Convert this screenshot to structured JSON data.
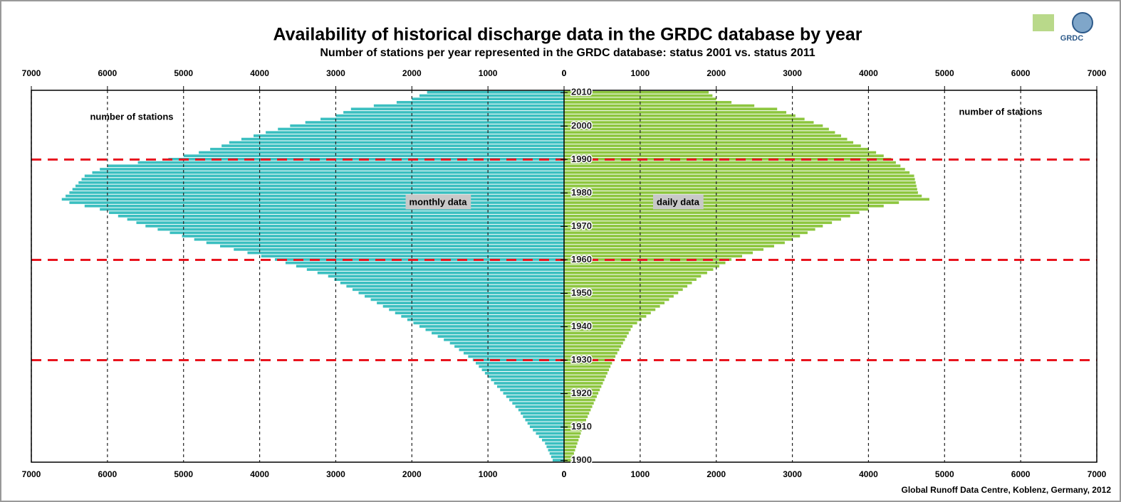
{
  "chart_data": {
    "type": "butterfly",
    "title": "Availability of historical discharge data in the GRDC database by year",
    "subtitle": "Number of stations per year represented in the GRDC database: status 2001 vs. status 2011",
    "annotations": [
      "number of stations",
      "number of stations"
    ],
    "footer": "Global Runoff Data Centre, Koblenz, Germany, 2012",
    "logo": "GRDC",
    "x": [
      1900,
      1901,
      1902,
      1903,
      1904,
      1905,
      1906,
      1907,
      1908,
      1909,
      1910,
      1911,
      1912,
      1913,
      1914,
      1915,
      1916,
      1917,
      1918,
      1919,
      1920,
      1921,
      1922,
      1923,
      1924,
      1925,
      1926,
      1927,
      1928,
      1929,
      1930,
      1931,
      1932,
      1933,
      1934,
      1935,
      1936,
      1937,
      1938,
      1939,
      1940,
      1941,
      1942,
      1943,
      1944,
      1945,
      1946,
      1947,
      1948,
      1949,
      1950,
      1951,
      1952,
      1953,
      1954,
      1955,
      1956,
      1957,
      1958,
      1959,
      1960,
      1961,
      1962,
      1963,
      1964,
      1965,
      1966,
      1967,
      1968,
      1969,
      1970,
      1971,
      1972,
      1973,
      1974,
      1975,
      1976,
      1977,
      1978,
      1979,
      1980,
      1981,
      1982,
      1983,
      1984,
      1985,
      1986,
      1987,
      1988,
      1989,
      1990,
      1991,
      1992,
      1993,
      1994,
      1995,
      1996,
      1997,
      1998,
      1999,
      2000,
      2001,
      2002,
      2003,
      2004,
      2005,
      2006,
      2007,
      2008,
      2009,
      2010
    ],
    "xlim": [
      1899.5,
      2010.7
    ],
    "xticks": [
      1900,
      1910,
      1920,
      1930,
      1940,
      1950,
      1960,
      1970,
      1980,
      1990,
      2000,
      2010
    ],
    "ylim": [
      0,
      7000
    ],
    "yticks": [
      0,
      1000,
      2000,
      3000,
      4000,
      5000,
      6000,
      7000
    ],
    "reference_lines": [
      1930,
      1960,
      1990
    ],
    "grid": true,
    "series": [
      {
        "name": "monthly data",
        "color": "#3bbfc0",
        "side": "left",
        "values": [
          150,
          170,
          190,
          210,
          230,
          250,
          290,
          330,
          370,
          410,
          450,
          480,
          510,
          540,
          570,
          600,
          640,
          680,
          720,
          760,
          800,
          840,
          880,
          920,
          960,
          1000,
          1040,
          1080,
          1120,
          1160,
          1200,
          1260,
          1320,
          1380,
          1440,
          1500,
          1580,
          1660,
          1740,
          1820,
          1900,
          1980,
          2060,
          2140,
          2220,
          2300,
          2380,
          2460,
          2540,
          2620,
          2700,
          2780,
          2860,
          2940,
          3020,
          3100,
          3240,
          3380,
          3520,
          3660,
          3800,
          3980,
          4160,
          4340,
          4520,
          4700,
          4860,
          5020,
          5180,
          5340,
          5500,
          5620,
          5740,
          5860,
          5980,
          6100,
          6300,
          6500,
          6600,
          6550,
          6500,
          6460,
          6420,
          6380,
          6340,
          6300,
          6200,
          6100,
          6000,
          5600,
          5200,
          5000,
          4800,
          4650,
          4500,
          4400,
          4240,
          4080,
          3920,
          3760,
          3600,
          3400,
          3200,
          3000,
          2900,
          2800,
          2500,
          2200,
          2000,
          1900,
          1800
        ]
      },
      {
        "name": "daily data",
        "color": "#8dc63f",
        "side": "right",
        "values": [
          100,
          115,
          130,
          145,
          160,
          175,
          190,
          205,
          220,
          235,
          250,
          270,
          290,
          310,
          330,
          350,
          370,
          390,
          410,
          430,
          450,
          470,
          490,
          510,
          530,
          550,
          570,
          590,
          610,
          630,
          650,
          675,
          700,
          725,
          750,
          775,
          800,
          825,
          850,
          875,
          900,
          960,
          1020,
          1080,
          1140,
          1200,
          1260,
          1320,
          1380,
          1440,
          1500,
          1560,
          1620,
          1680,
          1740,
          1800,
          1880,
          1960,
          2040,
          2120,
          2200,
          2340,
          2480,
          2620,
          2760,
          2900,
          3000,
          3100,
          3200,
          3300,
          3400,
          3520,
          3640,
          3760,
          3880,
          4000,
          4200,
          4400,
          4800,
          4700,
          4650,
          4640,
          4630,
          4620,
          4610,
          4600,
          4540,
          4480,
          4420,
          4360,
          4300,
          4200,
          4100,
          4000,
          3900,
          3800,
          3720,
          3640,
          3560,
          3480,
          3400,
          3280,
          3160,
          3040,
          2920,
          2800,
          2500,
          2200,
          2000,
          1950,
          1900
        ]
      }
    ]
  }
}
